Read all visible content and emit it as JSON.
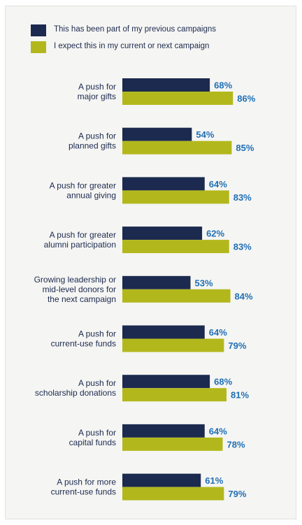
{
  "legend": {
    "previous": "This has been part of my previous campaigns",
    "expect": "I expect this in my current or next campaign"
  },
  "colors": {
    "previous": "#1c2a4f",
    "expect": "#b2b81c",
    "value_label": "#1f6fb5",
    "text": "#1c2a4f",
    "panel_bg": "#f5f5f3"
  },
  "chart_data": {
    "type": "bar",
    "orientation": "horizontal",
    "categories": [
      [
        "A push for",
        "major gifts"
      ],
      [
        "A push for",
        "planned gifts"
      ],
      [
        "A push for greater",
        "annual giving"
      ],
      [
        "A push for greater",
        "alumni participation"
      ],
      [
        "Growing leadership or",
        "mid-level donors for",
        "the next campaign"
      ],
      [
        "A push for",
        "current-use funds"
      ],
      [
        "A push for",
        "scholarship donations"
      ],
      [
        "A push for",
        "capital funds"
      ],
      [
        "A push for more",
        "current-use funds"
      ]
    ],
    "series": [
      {
        "name": "This has been part of my previous campaigns",
        "values": [
          68,
          54,
          64,
          62,
          53,
          64,
          68,
          64,
          61
        ]
      },
      {
        "name": "I expect this in my current or next campaign",
        "values": [
          86,
          85,
          83,
          83,
          84,
          79,
          81,
          78,
          79
        ]
      }
    ],
    "value_suffix": "%",
    "xlim": [
      0,
      100
    ],
    "grid": false,
    "legend_position": "top-left"
  }
}
